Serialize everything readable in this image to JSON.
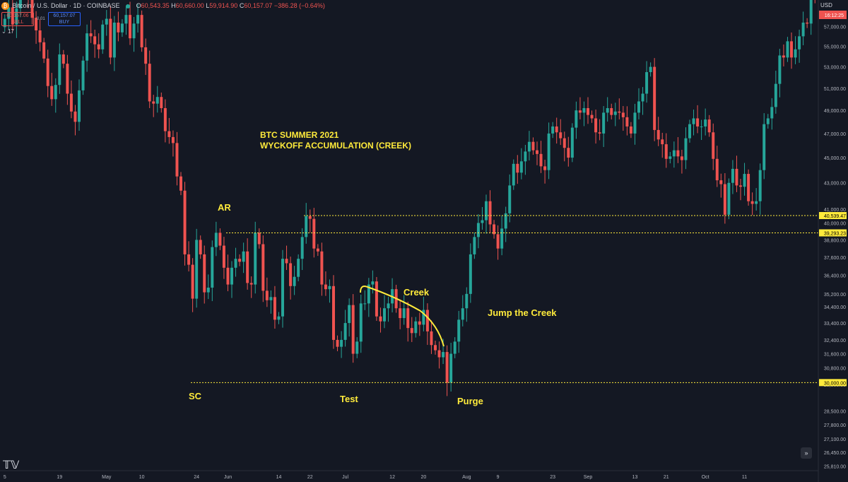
{
  "header": {
    "symbol": "Bitcoin / U.S. Dollar · 1D · COINBASE",
    "o_label": "O",
    "o_value": "60,543.35",
    "h_label": "H",
    "h_value": "60,660.00",
    "l_label": "L",
    "l_value": "59,914.90",
    "c_label": "C",
    "c_value": "60,157.07",
    "change": "−386.28 (−0.64%)"
  },
  "trade": {
    "sell_price": "60,157.06",
    "sell_label": "SELL",
    "spread": "0.01",
    "buy_price": "60,157.07",
    "buy_label": "BUY",
    "volume_toggle": "17"
  },
  "currency": "USD",
  "last_price_time": "16:12:25",
  "colors": {
    "background": "#141823",
    "up": "#26a69a",
    "down": "#ef5350",
    "annotation": "#ffeb3b",
    "level_line": "#ffeb3b",
    "grid_text": "#b2b5be"
  },
  "chart_data": {
    "type": "candlestick",
    "title": "BTC SUMMER 2021",
    "subtitle": "WYCKOFF ACCUMULATION (CREEK)",
    "y_scale": "log",
    "ylim": [
      25400,
      60400
    ],
    "x_tick_labels": [
      "5",
      "19",
      "May",
      "10",
      "24",
      "Jun",
      "14",
      "22",
      "Jul",
      "12",
      "20",
      "Aug",
      "9",
      "23",
      "Sep",
      "13",
      "21",
      "Oct",
      "11"
    ],
    "y_tick_labels": [
      57000,
      55000,
      53000,
      51000,
      49000,
      47000,
      45000,
      43000,
      41000,
      40000,
      38800,
      37600,
      36400,
      35200,
      34400,
      33400,
      32400,
      31600,
      30800,
      29900,
      28500,
      27800,
      27100,
      26450,
      25810
    ],
    "levels": [
      {
        "price": 40539.47,
        "label": "40,539.47"
      },
      {
        "price": 39293.23,
        "label": "39,293.23"
      },
      {
        "price": 30000.0,
        "label": "30,000.00"
      }
    ],
    "annotations": [
      "AR",
      "SC",
      "Test",
      "Creek",
      "Purge",
      "Jump the Creek"
    ],
    "closes": [
      57800,
      59000,
      57200,
      58900,
      60300,
      61500,
      60100,
      57900,
      56600,
      55400,
      53800,
      51200,
      50000,
      51300,
      54200,
      53300,
      50500,
      48900,
      48000,
      50800,
      53600,
      56300,
      56000,
      55200,
      54700,
      57200,
      57800,
      53900,
      57400,
      56400,
      57300,
      58200,
      55800,
      57300,
      58200,
      54900,
      53300,
      49800,
      49600,
      50200,
      49200,
      47200,
      46700,
      46200,
      43500,
      42400,
      37800,
      37100,
      34900,
      38800,
      37800,
      35300,
      35600,
      38300,
      39300,
      38400,
      36900,
      35800,
      36900,
      37500,
      37300,
      38000,
      35900,
      35800,
      39300,
      38500,
      35400,
      34800,
      35000,
      33600,
      33800,
      37500,
      37200,
      35700,
      36300,
      37500,
      39000,
      40500,
      40300,
      38200,
      38000,
      35800,
      35500,
      35700,
      32400,
      32000,
      32400,
      33400,
      34500,
      31600,
      32300,
      34600,
      34600,
      35800,
      36000,
      33800,
      33500,
      34300,
      34600,
      35500,
      34300,
      33700,
      34300,
      33100,
      32800,
      33500,
      33300,
      34200,
      32900,
      32100,
      31800,
      31400,
      31700,
      30000,
      31600,
      32300,
      33600,
      34300,
      35200,
      37800,
      39000,
      40000,
      40200,
      41600,
      39900,
      39200,
      38200,
      39600,
      40700,
      42800,
      44500,
      43800,
      44700,
      45500,
      46300,
      45600,
      45300,
      44300,
      44000,
      47000,
      47600,
      47100,
      46600,
      45800,
      45000,
      47500,
      49000,
      48800,
      49200,
      48600,
      48300,
      47100,
      47000,
      48800,
      49200,
      48600,
      48900,
      48800,
      48400,
      47600,
      47000,
      48800,
      49800,
      50500,
      52500,
      53000,
      47300,
      46500,
      46100,
      44900,
      45100,
      45600,
      45100,
      44800,
      46600,
      47800,
      48300,
      47600,
      47600,
      48200,
      47100,
      44900,
      43200,
      42900,
      40600,
      43000,
      44100,
      42800,
      42700,
      43700,
      41600,
      41400,
      41600,
      44000,
      47800,
      48300,
      49300,
      51400,
      54100,
      53900,
      55500,
      53900,
      54700,
      56000,
      57400,
      57300,
      60800,
      60157
    ]
  },
  "navigation_button": "»",
  "tradingview_logo": "TV"
}
